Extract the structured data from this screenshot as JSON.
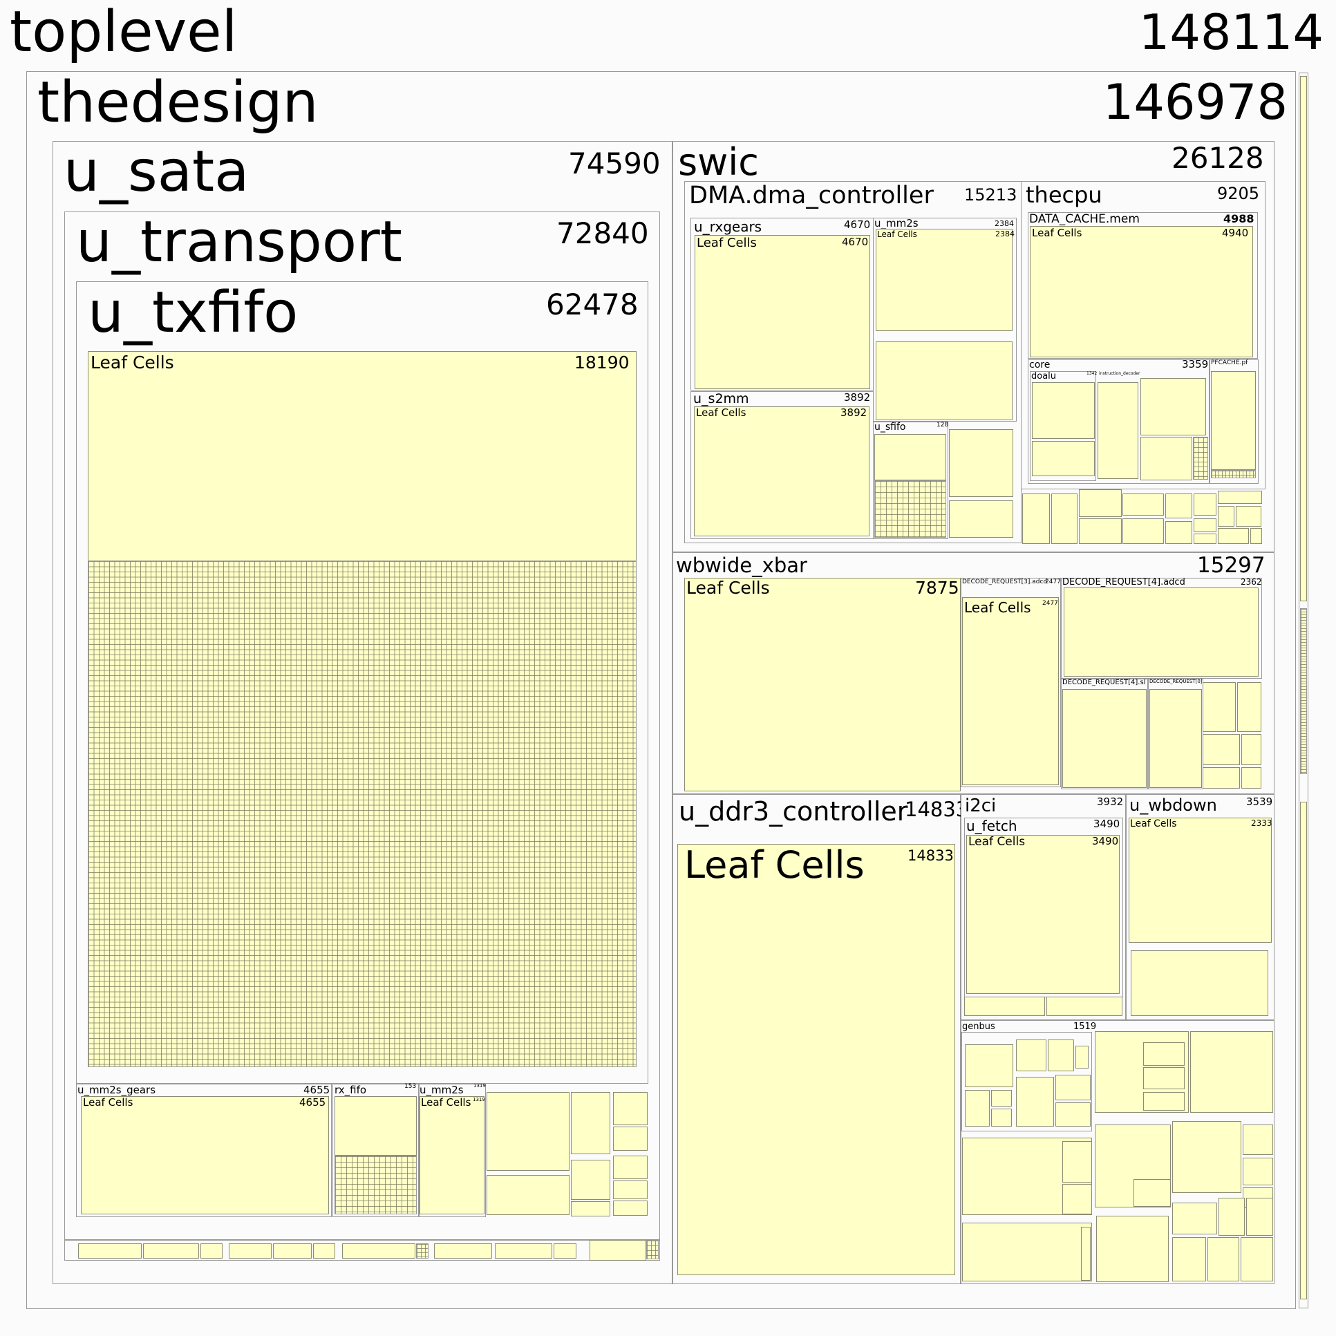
{
  "toplevel": {
    "name": "toplevel",
    "value": "148114"
  },
  "thedesign": {
    "name": "thedesign",
    "value": "146978"
  },
  "u_sata": {
    "name": "u_sata",
    "value": "74590"
  },
  "u_transport": {
    "name": "u_transport",
    "value": "72840"
  },
  "u_txfifo": {
    "name": "u_txfifo",
    "value": "62478",
    "leaf_name": "Leaf Cells",
    "leaf_value": "18190"
  },
  "u_mm2s_gears": {
    "name": "u_mm2s_gears",
    "value": "4655",
    "leaf_name": "Leaf Cells",
    "leaf_value": "4655"
  },
  "rx_fifo": {
    "name": "rx_fifo",
    "value": "153"
  },
  "sata_u_mm2s": {
    "name": "u_mm2s",
    "value": "1319",
    "leaf_name": "Leaf Cells",
    "leaf_value": "1319"
  },
  "swic": {
    "name": "swic",
    "value": "26128"
  },
  "dma_controller": {
    "name": "DMA.dma_controller",
    "value": "15213"
  },
  "u_rxgears": {
    "name": "u_rxgears",
    "value": "4670",
    "leaf_name": "Leaf Cells",
    "leaf_value": "4670"
  },
  "dma_u_mm2s": {
    "name": "u_mm2s",
    "value": "2384",
    "leaf_name": "Leaf Cells",
    "leaf_value": "2384"
  },
  "u_s2mm": {
    "name": "u_s2mm",
    "value": "3892",
    "leaf_name": "Leaf Cells",
    "leaf_value": "3892"
  },
  "u_sfifo": {
    "name": "u_sfifo",
    "value": "128"
  },
  "thecpu": {
    "name": "thecpu",
    "value": "9205"
  },
  "data_cache": {
    "name": "DATA_CACHE.mem",
    "value": "4988",
    "leaf_name": "Leaf Cells",
    "leaf_value": "4940"
  },
  "core": {
    "name": "core",
    "value": "3359"
  },
  "doalu": {
    "name": "doalu"
  },
  "core_small_labels": [
    "1342",
    "instruction_decoder"
  ],
  "pfcache": {
    "name": "PFCACHE.pf"
  },
  "wbwide_xbar": {
    "name": "wbwide_xbar",
    "value": "15297",
    "leaf_name": "Leaf Cells",
    "leaf_value": "7875"
  },
  "decode3": {
    "name": "DECODE_REQUEST[3].adcd",
    "value": "2477",
    "leaf_name": "Leaf Cells",
    "leaf_value": "2477"
  },
  "decode4": {
    "name": "DECODE_REQUEST[4].adcd",
    "value": "2362"
  },
  "decode4b": {
    "name": "DECODE_REQUEST[4].sl"
  },
  "decode_small": {
    "name": "DECODE_REQUEST[0]"
  },
  "u_ddr3_controller": {
    "name": "u_ddr3_controller",
    "value": "14833",
    "leaf_name": "Leaf Cells",
    "leaf_value": "14833"
  },
  "i2ci": {
    "name": "i2ci",
    "value": "3932"
  },
  "u_fetch": {
    "name": "u_fetch",
    "value": "3490",
    "leaf_name": "Leaf Cells",
    "leaf_value": "3490"
  },
  "u_wbdown": {
    "name": "u_wbdown",
    "value": "3539",
    "leaf_name": "Leaf Cells",
    "leaf_value": "2333"
  },
  "genbus": {
    "name": "genbus",
    "value": "1519"
  }
}
